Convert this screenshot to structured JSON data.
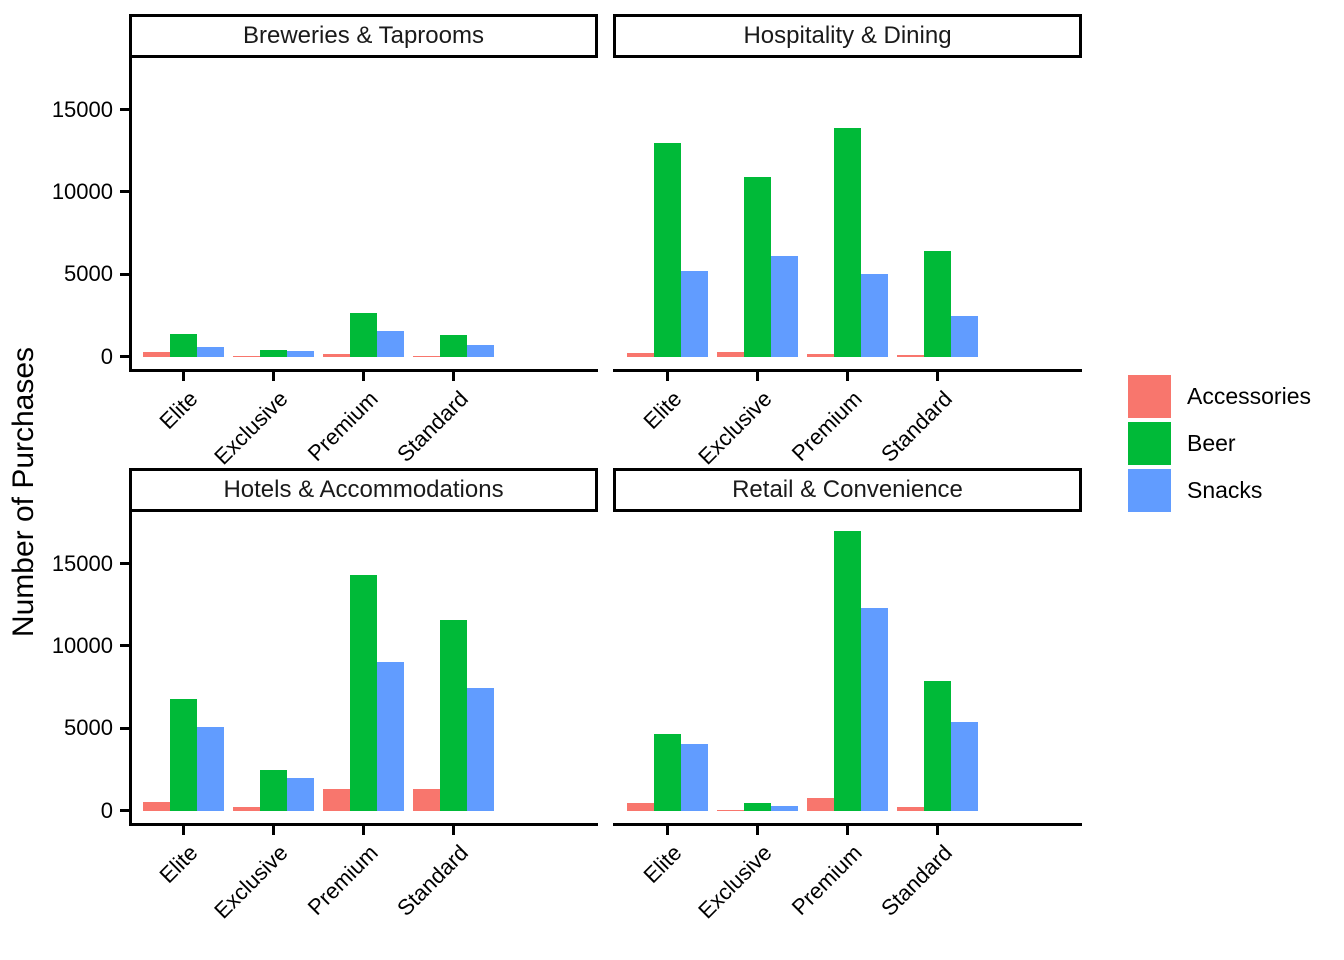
{
  "figure": {
    "y_axis_title": "Number of Purchases"
  },
  "legend": {
    "entries": [
      {
        "label": "Accessories",
        "color": "#F8766D"
      },
      {
        "label": "Beer",
        "color": "#00BA38"
      },
      {
        "label": "Snacks",
        "color": "#619CFF"
      }
    ]
  },
  "chart_data": {
    "type": "bar",
    "faceted": true,
    "title": "",
    "xlabel": "",
    "ylabel": "Number of Purchases",
    "grid": "off",
    "legend_position": "right",
    "categories": [
      "Elite",
      "Exclusive",
      "Premium",
      "Standard"
    ],
    "series_names": [
      "Accessories",
      "Beer",
      "Snacks"
    ],
    "series_colors": {
      "Accessories": "#F8766D",
      "Beer": "#00BA38",
      "Snacks": "#619CFF"
    },
    "y_ticks": [
      0,
      5000,
      10000,
      15000
    ],
    "y_tick_labels": [
      "0",
      "5000",
      "10000",
      "15000"
    ],
    "ylim": [
      -930,
      18130
    ],
    "facets": [
      {
        "title": "Breweries & Taprooms",
        "series": [
          {
            "name": "Accessories",
            "values": [
              280,
              60,
              160,
              60
            ]
          },
          {
            "name": "Beer",
            "values": [
              1400,
              430,
              2670,
              1320
            ]
          },
          {
            "name": "Snacks",
            "values": [
              600,
              370,
              1580,
              730
            ]
          }
        ]
      },
      {
        "title": "Hospitality & Dining",
        "series": [
          {
            "name": "Accessories",
            "values": [
              200,
              260,
              180,
              80
            ]
          },
          {
            "name": "Beer",
            "values": [
              13000,
              10900,
              13900,
              6400
            ]
          },
          {
            "name": "Snacks",
            "values": [
              5200,
              6100,
              5000,
              2450
            ]
          }
        ]
      },
      {
        "title": "Hotels & Accommodations",
        "series": [
          {
            "name": "Accessories",
            "values": [
              550,
              250,
              1320,
              1320
            ]
          },
          {
            "name": "Beer",
            "values": [
              6800,
              2450,
              14300,
              11600
            ]
          },
          {
            "name": "Snacks",
            "values": [
              5100,
              2000,
              9000,
              7450
            ]
          }
        ]
      },
      {
        "title": "Retail & Convenience",
        "series": [
          {
            "name": "Accessories",
            "values": [
              490,
              30,
              750,
              240
            ]
          },
          {
            "name": "Beer",
            "values": [
              4650,
              480,
              17000,
              7850
            ]
          },
          {
            "name": "Snacks",
            "values": [
              4050,
              300,
              12300,
              5400
            ]
          }
        ]
      }
    ]
  }
}
